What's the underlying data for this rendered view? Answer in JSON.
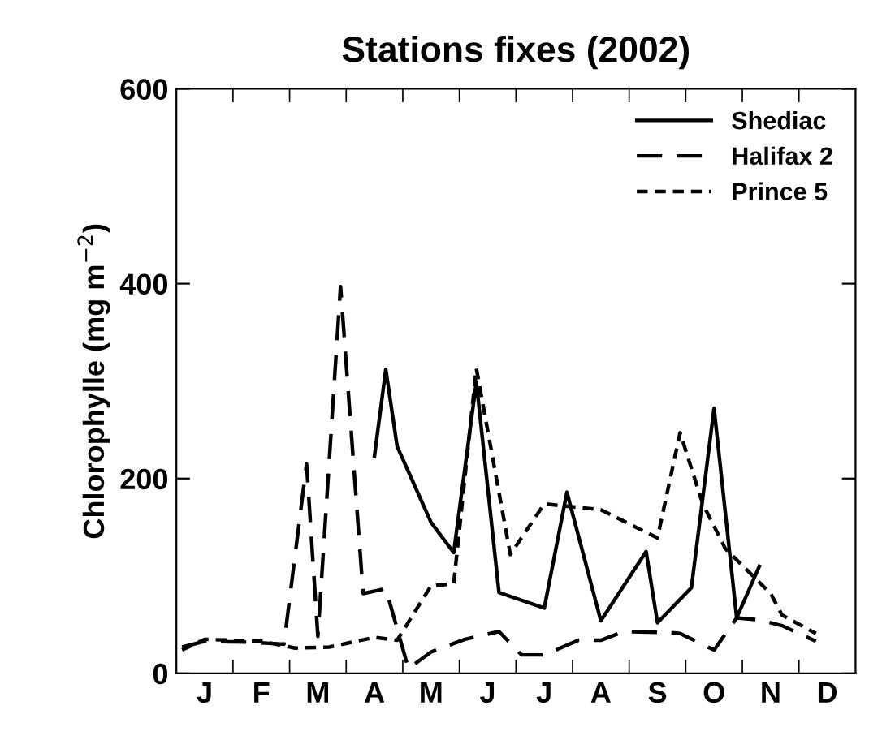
{
  "chart_data": {
    "type": "line",
    "title": "Stations fixes (2002)",
    "ylabel": "Chlorophylle (mg m$^{−2}$)",
    "categories": [
      null,
      null,
      "J",
      null,
      null,
      null,
      null,
      "F",
      null,
      null,
      null,
      null,
      "M",
      null,
      null,
      null,
      null,
      "A",
      null,
      null,
      null,
      null,
      "M",
      null,
      null,
      null,
      null,
      "J",
      null,
      null,
      null,
      null,
      "J",
      null,
      null,
      null,
      null,
      "A",
      null,
      null,
      null,
      null,
      "S",
      null,
      null,
      null,
      null,
      "O",
      null,
      null,
      null,
      null,
      "N",
      null,
      null,
      null,
      null,
      "D",
      null,
      null
    ],
    "ylim": [
      0,
      600
    ],
    "yticks": [
      0,
      200,
      400,
      600
    ],
    "grid": false,
    "legend": "top right",
    "marker": "none",
    "series": [
      {
        "name": "Shediac",
        "color": "#000000",
        "line_style": "solid",
        "values": [
          null,
          null,
          null,
          null,
          null,
          null,
          null,
          null,
          null,
          null,
          null,
          null,
          null,
          null,
          null,
          null,
          null,
          223,
          312,
          233,
          null,
          null,
          155,
          null,
          124,
          null,
          299,
          null,
          83,
          null,
          null,
          null,
          67,
          null,
          186,
          null,
          null,
          54,
          null,
          null,
          null,
          125,
          52,
          null,
          null,
          88,
          null,
          272,
          null,
          57,
          null,
          110,
          null,
          null,
          null,
          null,
          null,
          null,
          null,
          null
        ]
      },
      {
        "name": "Halifax 2",
        "color": "#000000",
        "line_style": "dashed",
        "values": [
          27,
          null,
          33,
          null,
          null,
          null,
          32,
          null,
          null,
          30,
          null,
          215,
          38,
          null,
          397,
          null,
          82,
          null,
          87,
          null,
          5,
          null,
          22,
          null,
          null,
          35,
          null,
          null,
          43,
          null,
          19,
          null,
          19,
          null,
          null,
          34,
          null,
          34,
          null,
          43,
          null,
          null,
          null,
          42,
          41,
          null,
          null,
          24,
          null,
          57,
          null,
          55,
          null,
          49,
          null,
          null,
          33,
          null,
          null,
          null
        ]
      },
      {
        "name": "Prince 5",
        "color": "#000000",
        "line_style": "dotted",
        "values": [
          24,
          null,
          35,
          null,
          null,
          null,
          null,
          33,
          null,
          null,
          26,
          null,
          null,
          27,
          null,
          null,
          null,
          37,
          null,
          34,
          null,
          null,
          90,
          null,
          92,
          null,
          313,
          null,
          null,
          122,
          null,
          null,
          174,
          null,
          null,
          null,
          null,
          168,
          null,
          null,
          null,
          null,
          139,
          null,
          247,
          null,
          174,
          null,
          128,
          null,
          null,
          null,
          82,
          60,
          null,
          null,
          41,
          null,
          null,
          null
        ]
      }
    ]
  }
}
